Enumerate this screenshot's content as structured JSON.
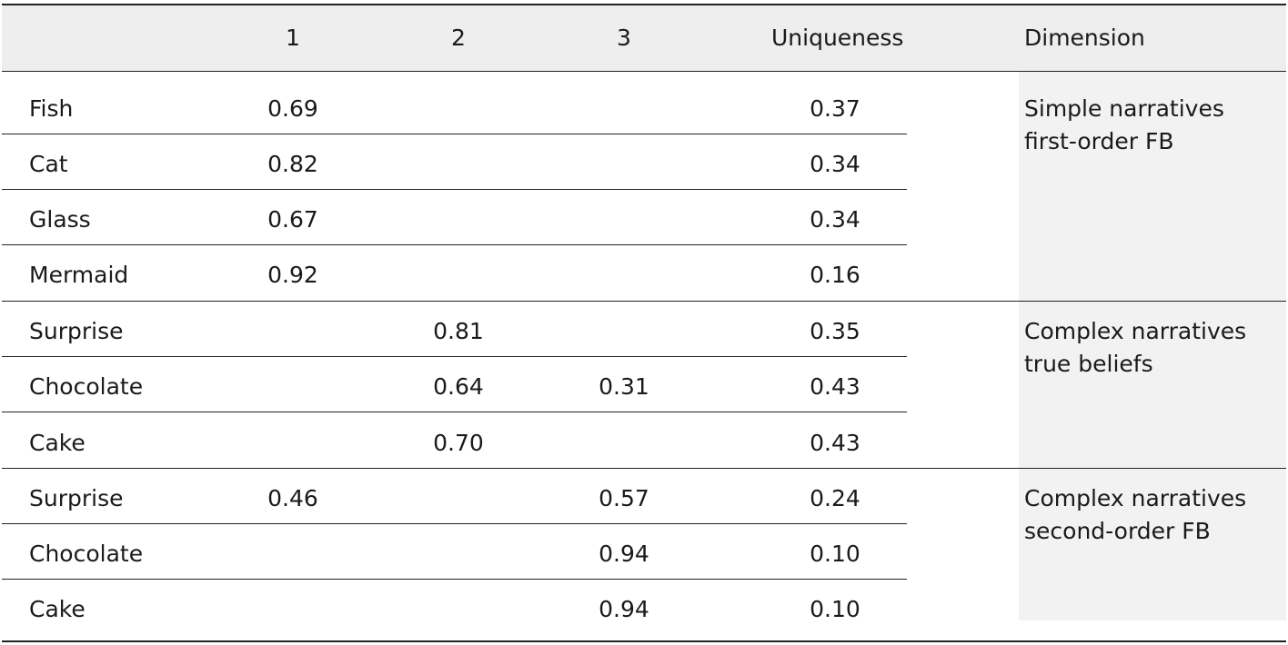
{
  "header": {
    "col1": "1",
    "col2": "2",
    "col3": "3",
    "uniqueness": "Uniqueness",
    "dimension": "Dimension"
  },
  "groups": [
    {
      "dimension_line1": "Simple narratives",
      "dimension_line2": "first-order FB",
      "rows": [
        {
          "label": "Fish",
          "c1": "0.69",
          "c2": "",
          "c3": "",
          "u": "0.37"
        },
        {
          "label": "Cat",
          "c1": "0.82",
          "c2": "",
          "c3": "",
          "u": "0.34"
        },
        {
          "label": "Glass",
          "c1": "0.67",
          "c2": "",
          "c3": "",
          "u": "0.34"
        },
        {
          "label": "Mermaid",
          "c1": "0.92",
          "c2": "",
          "c3": "",
          "u": "0.16"
        }
      ]
    },
    {
      "dimension_line1": "Complex narratives",
      "dimension_line2": "true beliefs",
      "rows": [
        {
          "label": "Surprise",
          "c1": "",
          "c2": "0.81",
          "c3": "",
          "u": "0.35"
        },
        {
          "label": "Chocolate",
          "c1": "",
          "c2": "0.64",
          "c3": "0.31",
          "u": "0.43"
        },
        {
          "label": "Cake",
          "c1": "",
          "c2": "0.70",
          "c3": "",
          "u": "0.43"
        }
      ]
    },
    {
      "dimension_line1": "Complex narratives",
      "dimension_line2": "second-order FB",
      "rows": [
        {
          "label": "Surprise",
          "c1": "0.46",
          "c2": "",
          "c3": "0.57",
          "u": "0.24"
        },
        {
          "label": "Chocolate",
          "c1": "",
          "c2": "",
          "c3": "0.94",
          "u": "0.10"
        },
        {
          "label": "Cake",
          "c1": "",
          "c2": "",
          "c3": "0.94",
          "u": "0.10"
        }
      ]
    }
  ],
  "colors": {
    "header_shade": "#eeeeee",
    "dimension_shade": "#f2f2f2",
    "rule": "#222222"
  }
}
